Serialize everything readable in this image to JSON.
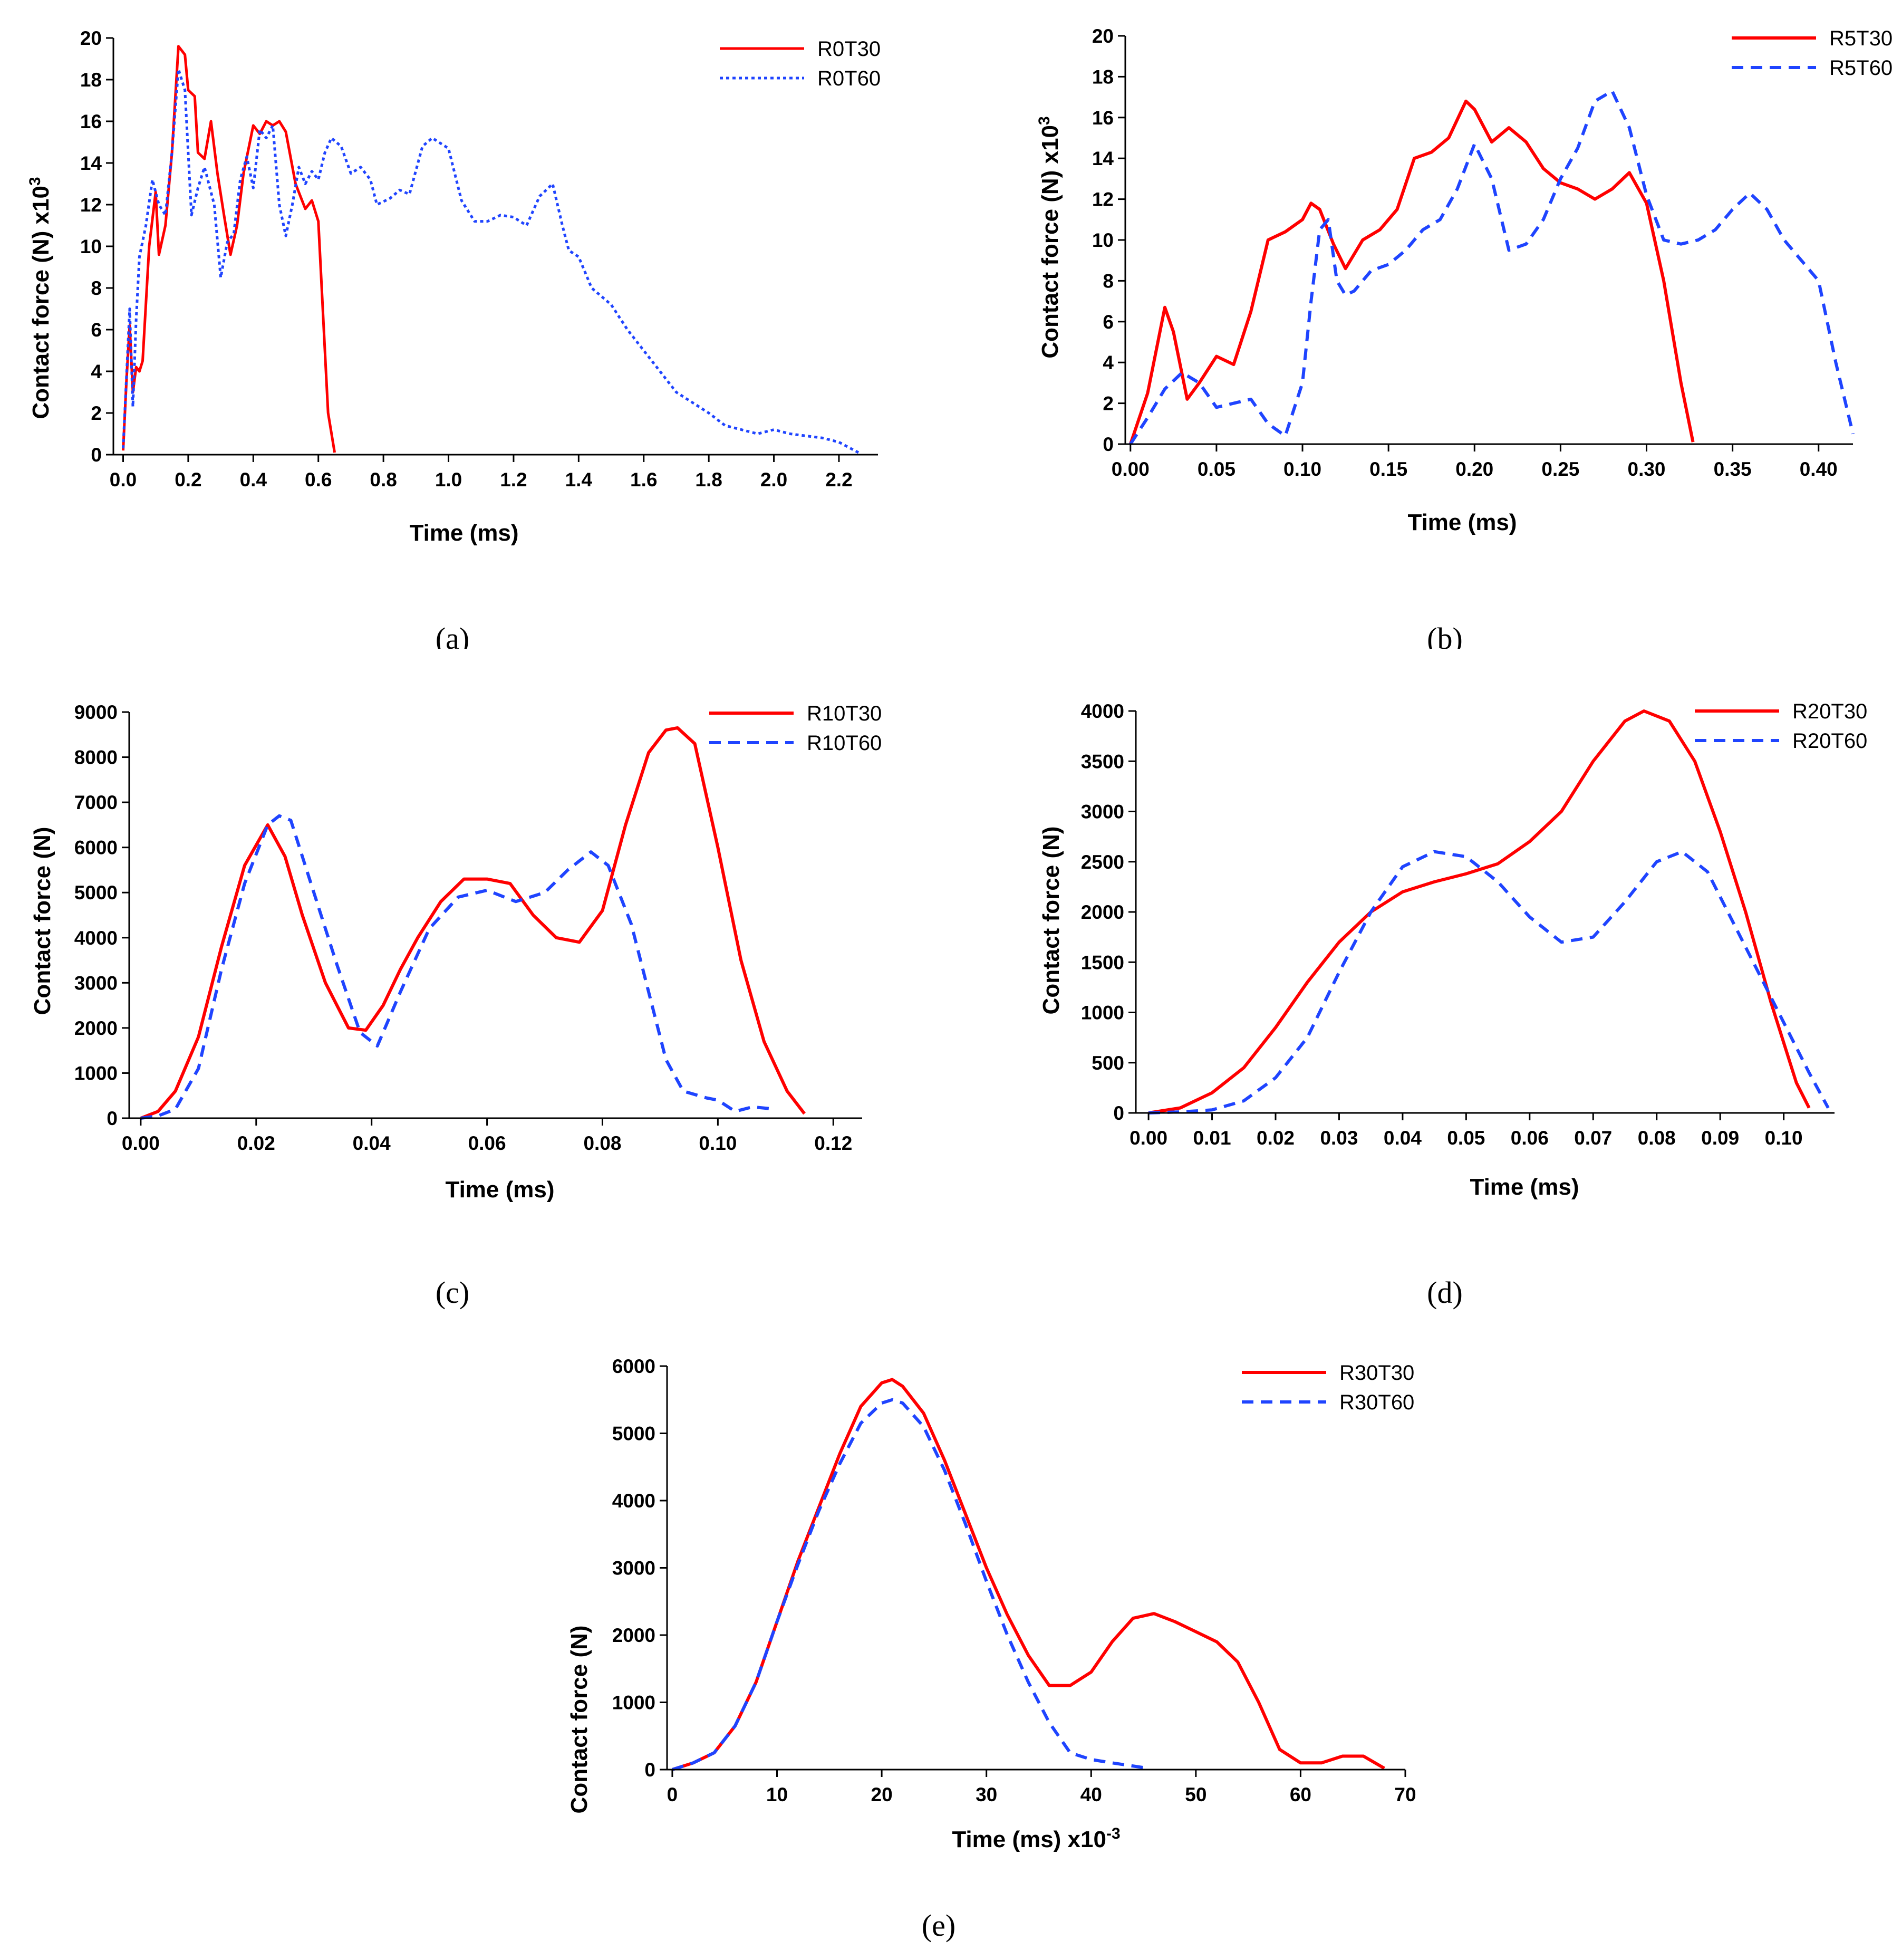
{
  "figure_captions": [
    "(a)",
    "(b)",
    "(c)",
    "(d)",
    "(e)"
  ],
  "colors": {
    "t30": "#ff0000",
    "t60": "#1f44ff",
    "axis": "#000000"
  },
  "chart_data": [
    {
      "id": "a",
      "caption": "(a)",
      "type": "line",
      "xlabel": "Time (ms)",
      "ylabel": "Contact force (N) x10",
      "ylabel_sup": "3",
      "xlim": [
        -0.03,
        2.32
      ],
      "ylim": [
        0,
        20
      ],
      "xticks": [
        0,
        0.2,
        0.4,
        0.6,
        0.8,
        1.0,
        1.2,
        1.4,
        1.6,
        1.8,
        2.0,
        2.2
      ],
      "xtick_labels": [
        "0.0",
        "0.2",
        "0.4",
        "0.6",
        "0.8",
        "1.0",
        "1.2",
        "1.4",
        "1.6",
        "1.8",
        "2.0",
        "2.2"
      ],
      "yticks": [
        0,
        2,
        4,
        6,
        8,
        10,
        12,
        14,
        16,
        18,
        20
      ],
      "ytick_labels": [
        "0",
        "2",
        "4",
        "6",
        "8",
        "10",
        "12",
        "14",
        "16",
        "18",
        "20"
      ],
      "legend_position": "top-right",
      "series": [
        {
          "name": "R0T30",
          "style": "solid",
          "color": "#ff0000",
          "width": 5,
          "x": [
            0.0,
            0.01,
            0.02,
            0.03,
            0.04,
            0.05,
            0.06,
            0.08,
            0.1,
            0.11,
            0.13,
            0.15,
            0.17,
            0.19,
            0.2,
            0.22,
            0.23,
            0.25,
            0.27,
            0.29,
            0.31,
            0.33,
            0.35,
            0.37,
            0.4,
            0.42,
            0.44,
            0.46,
            0.48,
            0.5,
            0.53,
            0.56,
            0.58,
            0.6,
            0.62,
            0.63,
            0.65
          ],
          "y": [
            0.2,
            3.5,
            6.2,
            3.0,
            4.2,
            4.0,
            4.5,
            10.0,
            12.6,
            9.6,
            11.0,
            14.5,
            19.6,
            19.2,
            17.5,
            17.2,
            14.5,
            14.2,
            16.0,
            13.5,
            11.5,
            9.6,
            11.0,
            13.5,
            15.8,
            15.4,
            16.0,
            15.8,
            16.0,
            15.5,
            13.0,
            11.8,
            12.2,
            11.2,
            5.0,
            2.0,
            0.1
          ]
        },
        {
          "name": "R0T60",
          "style": "dotted",
          "color": "#1f44ff",
          "width": 5,
          "x": [
            0.0,
            0.02,
            0.03,
            0.04,
            0.05,
            0.07,
            0.09,
            0.11,
            0.13,
            0.15,
            0.17,
            0.19,
            0.21,
            0.23,
            0.25,
            0.28,
            0.3,
            0.32,
            0.34,
            0.36,
            0.38,
            0.4,
            0.42,
            0.44,
            0.46,
            0.48,
            0.5,
            0.52,
            0.54,
            0.56,
            0.58,
            0.6,
            0.62,
            0.64,
            0.67,
            0.7,
            0.73,
            0.76,
            0.78,
            0.82,
            0.85,
            0.88,
            0.92,
            0.95,
            1.0,
            1.04,
            1.08,
            1.12,
            1.16,
            1.2,
            1.24,
            1.28,
            1.32,
            1.35,
            1.37,
            1.4,
            1.44,
            1.5,
            1.55,
            1.6,
            1.65,
            1.7,
            1.75,
            1.8,
            1.85,
            1.9,
            1.95,
            2.0,
            2.05,
            2.1,
            2.15,
            2.2,
            2.26
          ],
          "y": [
            0.3,
            7.0,
            2.3,
            6.5,
            9.5,
            11.0,
            13.2,
            12.0,
            11.5,
            14.5,
            18.5,
            17.5,
            11.5,
            12.8,
            13.8,
            12.0,
            8.5,
            10.2,
            10.6,
            13.2,
            14.3,
            12.8,
            15.6,
            15.2,
            15.8,
            12.0,
            10.5,
            12.0,
            13.8,
            13.0,
            13.6,
            13.2,
            14.5,
            15.2,
            14.8,
            13.5,
            13.8,
            13.2,
            12.0,
            12.3,
            12.7,
            12.5,
            14.8,
            15.2,
            14.7,
            12.2,
            11.2,
            11.2,
            11.5,
            11.4,
            11.0,
            12.4,
            13.0,
            11.0,
            9.8,
            9.5,
            8.0,
            7.2,
            6.0,
            5.0,
            4.0,
            3.0,
            2.5,
            2.0,
            1.4,
            1.2,
            1.0,
            1.2,
            1.0,
            0.9,
            0.8,
            0.6,
            0.1
          ]
        }
      ]
    },
    {
      "id": "b",
      "caption": "(b)",
      "type": "line",
      "xlabel": "Time (ms)",
      "ylabel": "Contact force (N) x10",
      "ylabel_sup": "3",
      "xlim": [
        -0.003,
        0.42
      ],
      "ylim": [
        0,
        20
      ],
      "xticks": [
        0,
        0.05,
        0.1,
        0.15,
        0.2,
        0.25,
        0.3,
        0.35,
        0.4
      ],
      "xtick_labels": [
        "0.00",
        "0.05",
        "0.10",
        "0.15",
        "0.20",
        "0.25",
        "0.30",
        "0.35",
        "0.40"
      ],
      "yticks": [
        0,
        2,
        4,
        6,
        8,
        10,
        12,
        14,
        16,
        18,
        20
      ],
      "ytick_labels": [
        "0",
        "2",
        "4",
        "6",
        "8",
        "10",
        "12",
        "14",
        "16",
        "18",
        "20"
      ],
      "legend_position": "top-right",
      "series": [
        {
          "name": "R5T30",
          "style": "solid",
          "color": "#ff0000",
          "width": 6,
          "x": [
            0.0,
            0.01,
            0.02,
            0.025,
            0.033,
            0.04,
            0.05,
            0.06,
            0.07,
            0.08,
            0.09,
            0.1,
            0.105,
            0.11,
            0.118,
            0.125,
            0.135,
            0.145,
            0.155,
            0.165,
            0.175,
            0.185,
            0.195,
            0.2,
            0.21,
            0.22,
            0.23,
            0.24,
            0.25,
            0.26,
            0.27,
            0.28,
            0.29,
            0.3,
            0.31,
            0.32,
            0.327
          ],
          "y": [
            0.0,
            2.5,
            6.7,
            5.5,
            2.2,
            3.0,
            4.3,
            3.9,
            6.5,
            10.0,
            10.4,
            11.0,
            11.8,
            11.5,
            9.8,
            8.6,
            10.0,
            10.5,
            11.5,
            14.0,
            14.3,
            15.0,
            16.8,
            16.4,
            14.8,
            15.5,
            14.8,
            13.5,
            12.8,
            12.5,
            12.0,
            12.5,
            13.3,
            11.8,
            8.0,
            3.0,
            0.1
          ]
        },
        {
          "name": "R5T60",
          "style": "dashed",
          "color": "#1f44ff",
          "width": 6,
          "x": [
            0.0,
            0.01,
            0.02,
            0.03,
            0.04,
            0.05,
            0.06,
            0.07,
            0.08,
            0.09,
            0.1,
            0.105,
            0.11,
            0.115,
            0.12,
            0.125,
            0.13,
            0.14,
            0.15,
            0.16,
            0.17,
            0.18,
            0.19,
            0.2,
            0.21,
            0.22,
            0.23,
            0.24,
            0.25,
            0.26,
            0.27,
            0.28,
            0.29,
            0.3,
            0.31,
            0.32,
            0.33,
            0.34,
            0.35,
            0.36,
            0.37,
            0.38,
            0.39,
            0.4,
            0.41,
            0.42
          ],
          "y": [
            0.0,
            1.3,
            2.7,
            3.5,
            3.0,
            1.8,
            2.0,
            2.2,
            1.0,
            0.4,
            3.0,
            7.0,
            10.5,
            11.0,
            8.0,
            7.3,
            7.5,
            8.5,
            8.8,
            9.5,
            10.5,
            11.0,
            12.5,
            14.7,
            13.0,
            9.5,
            9.8,
            11.0,
            13.0,
            14.5,
            16.8,
            17.3,
            15.5,
            12.2,
            10.0,
            9.8,
            10.0,
            10.5,
            11.5,
            12.3,
            11.5,
            10.0,
            9.0,
            8.0,
            4.0,
            0.5
          ]
        }
      ]
    },
    {
      "id": "c",
      "caption": "(c)",
      "type": "line",
      "xlabel": "Time (ms)",
      "ylabel": "Contact force (N)",
      "ylabel_sup": "",
      "xlim": [
        -0.002,
        0.125
      ],
      "ylim": [
        0,
        9000
      ],
      "xticks": [
        0,
        0.02,
        0.04,
        0.06,
        0.08,
        0.1,
        0.12
      ],
      "xtick_labels": [
        "0.00",
        "0.02",
        "0.04",
        "0.06",
        "0.08",
        "0.10",
        "0.12"
      ],
      "yticks": [
        0,
        1000,
        2000,
        3000,
        4000,
        5000,
        6000,
        7000,
        8000,
        9000
      ],
      "ytick_labels": [
        "0",
        "1000",
        "2000",
        "3000",
        "4000",
        "5000",
        "6000",
        "7000",
        "8000",
        "9000"
      ],
      "legend_position": "top-right",
      "series": [
        {
          "name": "R10T30",
          "style": "solid",
          "color": "#ff0000",
          "width": 6,
          "x": [
            0.0,
            0.003,
            0.006,
            0.01,
            0.014,
            0.018,
            0.022,
            0.025,
            0.028,
            0.032,
            0.036,
            0.039,
            0.042,
            0.045,
            0.048,
            0.052,
            0.056,
            0.06,
            0.064,
            0.068,
            0.072,
            0.076,
            0.08,
            0.084,
            0.088,
            0.091,
            0.093,
            0.096,
            0.1,
            0.104,
            0.108,
            0.112,
            0.115
          ],
          "y": [
            0,
            150,
            600,
            1800,
            3800,
            5600,
            6500,
            5800,
            4500,
            3000,
            2000,
            1950,
            2500,
            3300,
            4000,
            4800,
            5300,
            5300,
            5200,
            4500,
            4000,
            3900,
            4600,
            6500,
            8100,
            8600,
            8650,
            8300,
            6000,
            3500,
            1700,
            600,
            100
          ]
        },
        {
          "name": "R10T60",
          "style": "dashed",
          "color": "#1f44ff",
          "width": 6,
          "x": [
            0.0,
            0.003,
            0.006,
            0.01,
            0.014,
            0.018,
            0.022,
            0.024,
            0.026,
            0.03,
            0.034,
            0.038,
            0.041,
            0.045,
            0.05,
            0.055,
            0.06,
            0.065,
            0.07,
            0.074,
            0.078,
            0.081,
            0.085,
            0.088,
            0.091,
            0.094,
            0.098,
            0.1,
            0.103,
            0.106,
            0.11
          ],
          "y": [
            0,
            50,
            200,
            1100,
            3300,
            5200,
            6500,
            6700,
            6600,
            5000,
            3400,
            1900,
            1600,
            2800,
            4200,
            4900,
            5050,
            4800,
            5000,
            5500,
            5900,
            5600,
            4300,
            2800,
            1300,
            600,
            450,
            400,
            150,
            250,
            200
          ]
        }
      ]
    },
    {
      "id": "d",
      "caption": "(d)",
      "type": "line",
      "xlabel": "Time (ms)",
      "ylabel": "Contact force (N)",
      "ylabel_sup": "",
      "xlim": [
        -0.002,
        0.108
      ],
      "ylim": [
        0,
        4000
      ],
      "xticks": [
        0,
        0.01,
        0.02,
        0.03,
        0.04,
        0.05,
        0.06,
        0.07,
        0.08,
        0.09,
        0.1
      ],
      "xtick_labels": [
        "0.00",
        "0.01",
        "0.02",
        "0.03",
        "0.04",
        "0.05",
        "0.06",
        "0.07",
        "0.08",
        "0.09",
        "0.10"
      ],
      "yticks": [
        0,
        500,
        1000,
        1500,
        2000,
        2500,
        3000,
        3500,
        4000
      ],
      "ytick_labels": [
        "0",
        "500",
        "1000",
        "1500",
        "2000",
        "2500",
        "3000",
        "3500",
        "4000"
      ],
      "legend_position": "top-right",
      "series": [
        {
          "name": "R20T30",
          "style": "solid",
          "color": "#ff0000",
          "width": 6,
          "x": [
            0.0,
            0.005,
            0.01,
            0.015,
            0.02,
            0.025,
            0.03,
            0.035,
            0.04,
            0.045,
            0.05,
            0.055,
            0.06,
            0.065,
            0.07,
            0.075,
            0.078,
            0.082,
            0.086,
            0.09,
            0.094,
            0.098,
            0.102,
            0.104
          ],
          "y": [
            0,
            50,
            200,
            450,
            850,
            1300,
            1700,
            2000,
            2200,
            2300,
            2380,
            2480,
            2700,
            3000,
            3500,
            3900,
            4000,
            3900,
            3500,
            2800,
            2000,
            1100,
            300,
            50
          ]
        },
        {
          "name": "R20T60",
          "style": "dashed",
          "color": "#1f44ff",
          "width": 6,
          "x": [
            0.0,
            0.005,
            0.01,
            0.015,
            0.02,
            0.025,
            0.03,
            0.035,
            0.04,
            0.045,
            0.05,
            0.055,
            0.06,
            0.065,
            0.07,
            0.075,
            0.08,
            0.084,
            0.088,
            0.092,
            0.096,
            0.1,
            0.104,
            0.107
          ],
          "y": [
            0,
            10,
            30,
            120,
            350,
            750,
            1400,
            2000,
            2450,
            2600,
            2550,
            2300,
            1950,
            1700,
            1750,
            2100,
            2500,
            2600,
            2400,
            1900,
            1400,
            900,
            400,
            50
          ]
        }
      ]
    },
    {
      "id": "e",
      "caption": "(e)",
      "type": "line",
      "xlabel": "Time (ms) x10",
      "xlabel_sup": "-3",
      "ylabel": "Contact force (N)",
      "ylabel_sup": "",
      "xlim": [
        -0.5,
        70
      ],
      "ylim": [
        0,
        6000
      ],
      "xticks": [
        0,
        10,
        20,
        30,
        40,
        50,
        60,
        70
      ],
      "xtick_labels": [
        "0",
        "10",
        "20",
        "30",
        "40",
        "50",
        "60",
        "70"
      ],
      "yticks": [
        0,
        1000,
        2000,
        3000,
        4000,
        5000,
        6000
      ],
      "ytick_labels": [
        "0",
        "1000",
        "2000",
        "3000",
        "4000",
        "5000",
        "6000"
      ],
      "legend_position": "top-right",
      "series": [
        {
          "name": "R30T30",
          "style": "solid",
          "color": "#ff0000",
          "width": 6,
          "x": [
            0,
            2,
            4,
            6,
            8,
            10,
            12,
            14,
            16,
            18,
            20,
            21,
            22,
            24,
            26,
            28,
            30,
            32,
            34,
            36,
            38,
            40,
            42,
            44,
            46,
            48,
            50,
            52,
            54,
            56,
            58,
            60,
            62,
            64,
            66,
            68
          ],
          "y": [
            0,
            100,
            250,
            650,
            1300,
            2200,
            3100,
            3900,
            4700,
            5400,
            5750,
            5800,
            5700,
            5300,
            4600,
            3800,
            3000,
            2300,
            1700,
            1250,
            1250,
            1450,
            1900,
            2250,
            2320,
            2200,
            2050,
            1900,
            1600,
            1000,
            300,
            100,
            100,
            200,
            200,
            20
          ]
        },
        {
          "name": "R30T60",
          "style": "dashed",
          "color": "#1f44ff",
          "width": 6,
          "x": [
            0,
            2,
            4,
            6,
            8,
            10,
            12,
            14,
            16,
            18,
            20,
            21,
            22,
            24,
            26,
            28,
            30,
            32,
            34,
            36,
            38,
            40,
            42,
            45
          ],
          "y": [
            0,
            100,
            250,
            650,
            1300,
            2200,
            3050,
            3850,
            4550,
            5150,
            5450,
            5500,
            5450,
            5100,
            4450,
            3650,
            2800,
            2000,
            1300,
            700,
            250,
            150,
            100,
            30
          ]
        }
      ]
    }
  ]
}
